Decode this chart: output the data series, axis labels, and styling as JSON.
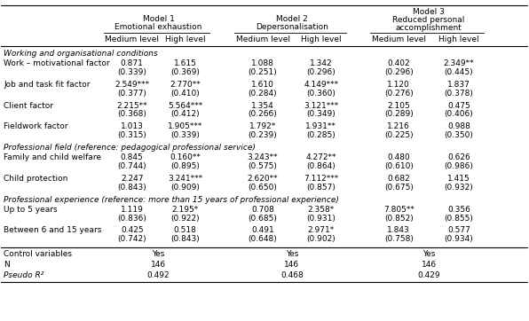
{
  "model_headers": [
    "Model 1",
    "Model 2",
    "Model 3"
  ],
  "model_subheaders": [
    "Emotional exhaustion",
    "Depersonalisation",
    "Reduced personal\naccomplishment"
  ],
  "col_headers": [
    "Medium level",
    "High level",
    "Medium level",
    "High level",
    "Medium level",
    "High level"
  ],
  "section_headers": [
    "Working and organisational conditions",
    "Professional field (reference: pedagogical professional service)",
    "Professional experience (reference: more than 15 years of professional experience)"
  ],
  "rows": [
    {
      "label": "Work – motivational factor",
      "values": [
        "0.871",
        "1.615",
        "1.088",
        "1.342",
        "0.402",
        "2.349**"
      ],
      "se": [
        "(0.339)",
        "(0.369)",
        "(0.251)",
        "(0.296)",
        "(0.296)",
        "(0.445)"
      ],
      "section": 0
    },
    {
      "label": "Job and task fit factor",
      "values": [
        "2.549***",
        "2.770**",
        "1.610",
        "4.149***",
        "1.120",
        "1.837"
      ],
      "se": [
        "(0.377)",
        "(0.410)",
        "(0.284)",
        "(0.360)",
        "(0.276)",
        "(0.378)"
      ],
      "section": 0
    },
    {
      "label": "Client factor",
      "values": [
        "2.215**",
        "5.564***",
        "1.354",
        "3.121***",
        "2.105",
        "0.475"
      ],
      "se": [
        "(0.368)",
        "(0.412)",
        "(0.266)",
        "(0.349)",
        "(0.289)",
        "(0.406)"
      ],
      "section": 0
    },
    {
      "label": "Fieldwork factor",
      "values": [
        "1.013",
        "1.905***",
        "1.792*",
        "1.931**",
        "1.216",
        "0.988"
      ],
      "se": [
        "(0.315)",
        "(0.339)",
        "(0.239)",
        "(0.285)",
        "(0.225)",
        "(0.350)"
      ],
      "section": 0
    },
    {
      "label": "Family and child welfare",
      "values": [
        "0.845",
        "0.160**",
        "3.243**",
        "4.272**",
        "0.480",
        "0.626"
      ],
      "se": [
        "(0.744)",
        "(0.895)",
        "(0.575)",
        "(0.864)",
        "(0.610)",
        "(0.986)"
      ],
      "section": 1
    },
    {
      "label": "Child protection",
      "values": [
        "2.247",
        "3.241***",
        "2.620**",
        "7.112***",
        "0.682",
        "1.415"
      ],
      "se": [
        "(0.843)",
        "(0.909)",
        "(0.650)",
        "(0.857)",
        "(0.675)",
        "(0.932)"
      ],
      "section": 1
    },
    {
      "label": "Up to 5 years",
      "values": [
        "1.119",
        "2.195*",
        "0.708",
        "2.358*",
        "7.805**",
        "0.356"
      ],
      "se": [
        "(0.836)",
        "(0.922)",
        "(0.685)",
        "(0.931)",
        "(0.852)",
        "(0.855)"
      ],
      "section": 2
    },
    {
      "label": "Between 6 and 15 years",
      "values": [
        "0.425",
        "0.518",
        "0.491",
        "2.971*",
        "1.843",
        "0.577"
      ],
      "se": [
        "(0.742)",
        "(0.843)",
        "(0.648)",
        "(0.902)",
        "(0.758)",
        "(0.934)"
      ],
      "section": 2
    }
  ],
  "footer_rows": [
    {
      "label": "Control variables",
      "values": [
        "Yes",
        "Yes",
        "Yes"
      ],
      "italic": false
    },
    {
      "label": "N",
      "values": [
        "146",
        "146",
        "146"
      ],
      "italic": false
    },
    {
      "label": "Pseudo R²",
      "values": [
        "0.492",
        "0.468",
        "0.429"
      ],
      "italic": true
    }
  ],
  "bg_color": "#ffffff",
  "text_color": "#000000",
  "font_size": 6.5
}
